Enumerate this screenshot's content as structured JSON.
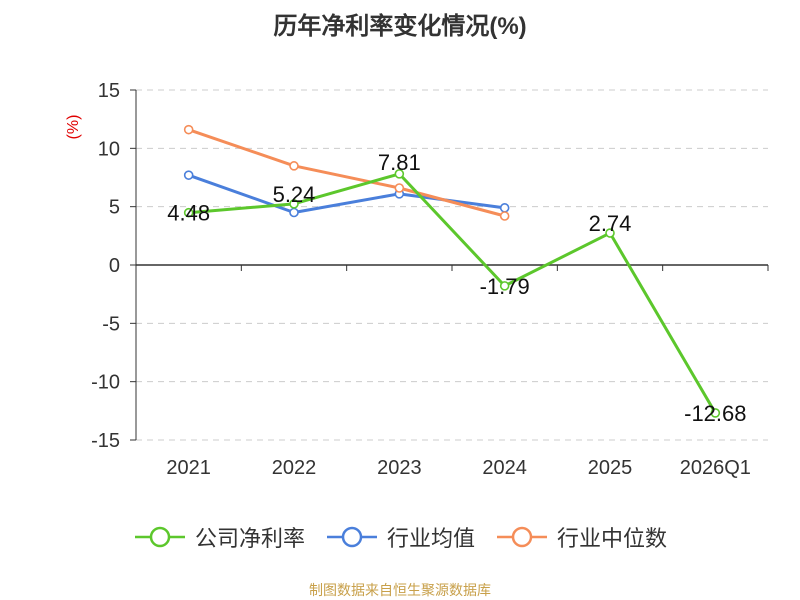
{
  "chart_data": {
    "type": "line",
    "title": "历年净利率变化情况(%)",
    "ylabel": "(%)",
    "xlabel": "",
    "categories": [
      "2021",
      "2022",
      "2023",
      "2024",
      "2025",
      "2026Q1"
    ],
    "ylim": [
      -15,
      15
    ],
    "yticks": [
      15,
      10,
      5,
      0,
      -5,
      -10,
      -15
    ],
    "grid": true,
    "legend_position": "bottom",
    "series": [
      {
        "name": "公司净利率",
        "color": "#5cc72c",
        "values": [
          4.48,
          5.24,
          7.81,
          -1.79,
          2.74,
          -12.68
        ],
        "labels": [
          "4.48",
          "5.24",
          "7.81",
          "-1.79",
          "2.74",
          "-12.68"
        ]
      },
      {
        "name": "行业均值",
        "color": "#4a7fdb",
        "values": [
          7.7,
          4.5,
          6.1,
          4.9,
          null,
          null
        ]
      },
      {
        "name": "行业中位数",
        "color": "#f58d58",
        "values": [
          11.6,
          8.5,
          6.6,
          4.2,
          null,
          null
        ]
      }
    ]
  },
  "footer": {
    "source": "制图数据来自恒生聚源数据库"
  },
  "colors": {
    "axis": "#333333",
    "grid": "#cccccc",
    "ylabel": "#e00000"
  }
}
